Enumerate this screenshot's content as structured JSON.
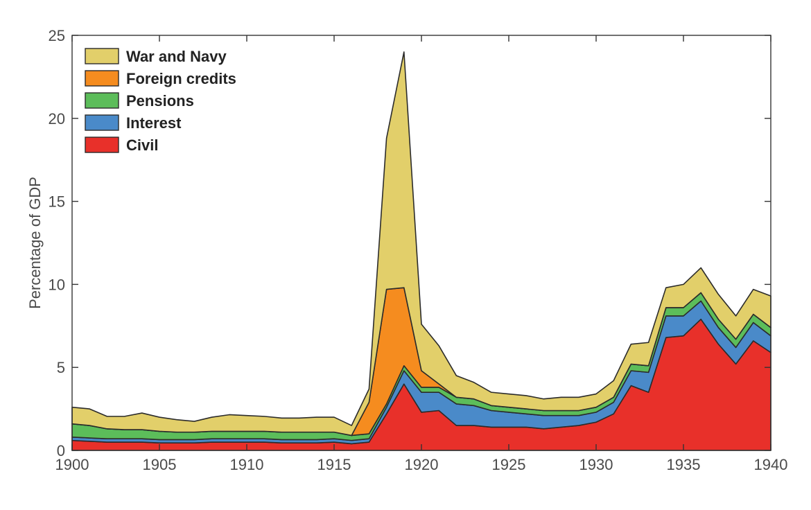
{
  "chart_data": {
    "type": "area",
    "stacked": true,
    "title": "",
    "xlabel": "",
    "ylabel": "Percentage of GDP",
    "xlim": [
      1900,
      1940
    ],
    "ylim": [
      0,
      25
    ],
    "x_ticks": [
      1900,
      1905,
      1910,
      1915,
      1920,
      1925,
      1930,
      1935,
      1940
    ],
    "y_ticks": [
      0,
      5,
      10,
      15,
      20,
      25
    ],
    "grid": false,
    "legend_position": "top-left",
    "x": [
      1900,
      1901,
      1902,
      1903,
      1904,
      1905,
      1906,
      1907,
      1908,
      1909,
      1910,
      1911,
      1912,
      1913,
      1914,
      1915,
      1916,
      1917,
      1918,
      1919,
      1920,
      1921,
      1922,
      1923,
      1924,
      1925,
      1926,
      1927,
      1928,
      1929,
      1930,
      1931,
      1932,
      1933,
      1934,
      1935,
      1936,
      1937,
      1938,
      1939,
      1940
    ],
    "series": [
      {
        "name": "Civil",
        "color": "#e8302a",
        "values": [
          0.6,
          0.55,
          0.5,
          0.5,
          0.5,
          0.45,
          0.45,
          0.45,
          0.5,
          0.5,
          0.5,
          0.5,
          0.45,
          0.45,
          0.45,
          0.5,
          0.4,
          0.5,
          2.2,
          4.0,
          2.3,
          2.4,
          1.5,
          1.5,
          1.4,
          1.4,
          1.4,
          1.3,
          1.4,
          1.5,
          1.7,
          2.2,
          3.9,
          3.5,
          6.8,
          6.9,
          7.9,
          6.4,
          5.2,
          6.6,
          5.9
        ]
      },
      {
        "name": "Interest",
        "color": "#4a8ac9",
        "values": [
          0.2,
          0.2,
          0.2,
          0.2,
          0.2,
          0.2,
          0.2,
          0.2,
          0.2,
          0.2,
          0.2,
          0.2,
          0.2,
          0.2,
          0.2,
          0.2,
          0.2,
          0.2,
          0.4,
          0.8,
          1.2,
          1.1,
          1.3,
          1.2,
          1.0,
          0.9,
          0.8,
          0.8,
          0.7,
          0.6,
          0.6,
          0.7,
          0.9,
          1.2,
          1.3,
          1.2,
          1.1,
          1.0,
          1.0,
          1.1,
          1.0
        ]
      },
      {
        "name": "Pensions",
        "color": "#5cbd5a",
        "values": [
          0.8,
          0.75,
          0.6,
          0.55,
          0.55,
          0.5,
          0.45,
          0.45,
          0.45,
          0.45,
          0.45,
          0.45,
          0.45,
          0.45,
          0.45,
          0.4,
          0.3,
          0.3,
          0.2,
          0.3,
          0.3,
          0.3,
          0.4,
          0.4,
          0.3,
          0.3,
          0.3,
          0.3,
          0.3,
          0.3,
          0.3,
          0.3,
          0.4,
          0.4,
          0.5,
          0.5,
          0.5,
          0.5,
          0.5,
          0.5,
          0.5
        ]
      },
      {
        "name": "Foreign credits",
        "color": "#f58c1f",
        "values": [
          0,
          0,
          0,
          0,
          0,
          0,
          0,
          0,
          0,
          0,
          0,
          0,
          0,
          0,
          0,
          0,
          0,
          1.9,
          6.9,
          4.7,
          1.0,
          0.2,
          0,
          0,
          0,
          0,
          0,
          0,
          0,
          0,
          0,
          0,
          0,
          0,
          0,
          0,
          0,
          0,
          0,
          0,
          0
        ]
      },
      {
        "name": "War and Navy",
        "color": "#e2cf6a",
        "values": [
          1.0,
          1.0,
          0.75,
          0.8,
          1.0,
          0.85,
          0.75,
          0.65,
          0.85,
          1.0,
          0.95,
          0.9,
          0.85,
          0.85,
          0.9,
          0.9,
          0.6,
          0.8,
          9.1,
          14.2,
          2.8,
          2.3,
          1.3,
          1.0,
          0.8,
          0.8,
          0.8,
          0.7,
          0.8,
          0.8,
          0.8,
          1.0,
          1.2,
          1.4,
          1.2,
          1.4,
          1.5,
          1.5,
          1.4,
          1.5,
          1.9
        ]
      }
    ]
  }
}
